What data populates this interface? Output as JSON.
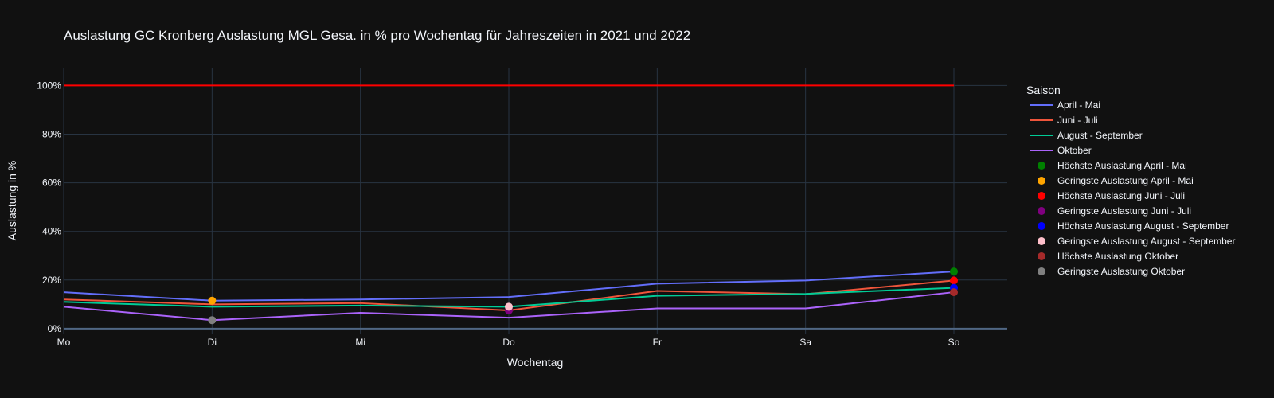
{
  "chart_data": {
    "type": "line",
    "title": "Auslastung GC Kronberg Auslastung MGL Gesa. in % pro Wochentag für Jahreszeiten in 2021 und 2022",
    "xlabel": "Wochentag",
    "ylabel": "Auslastung in %",
    "categories": [
      "Mo",
      "Di",
      "Mi",
      "Do",
      "Fr",
      "Sa",
      "So"
    ],
    "yticks": [
      "0%",
      "20%",
      "40%",
      "60%",
      "80%",
      "100%"
    ],
    "ylim": [
      -2,
      107
    ],
    "grid": true,
    "legend_title": "Saison",
    "legend_position": "right",
    "reference_line": {
      "value": 100,
      "color": "#ff0000"
    },
    "series": [
      {
        "name": "April - Mai",
        "color": "#636efa",
        "values": [
          15,
          11.5,
          12,
          13,
          18.5,
          19.8,
          23.5
        ]
      },
      {
        "name": "Juni - Juli",
        "color": "#ef553b",
        "values": [
          12,
          10,
          10.5,
          7.5,
          15.5,
          14.2,
          19.8
        ]
      },
      {
        "name": "August - September",
        "color": "#00cc96",
        "values": [
          11,
          9,
          9.5,
          9,
          13.5,
          14.3,
          16.8
        ]
      },
      {
        "name": "Oktober",
        "color": "#ab63fa",
        "values": [
          9,
          3.5,
          6.5,
          4.5,
          8.3,
          8.3,
          15
        ]
      }
    ],
    "markers": [
      {
        "name": "Höchste Auslastung April - Mai",
        "color": "#008000",
        "x": "So",
        "y": 23.5
      },
      {
        "name": "Geringste Auslastung April - Mai",
        "color": "#ffa500",
        "x": "Di",
        "y": 11.5
      },
      {
        "name": "Höchste Auslastung Juni - Juli",
        "color": "#ff0000",
        "x": "So",
        "y": 19.8
      },
      {
        "name": "Geringste Auslastung Juni - Juli",
        "color": "#800080",
        "x": "Do",
        "y": 7.5
      },
      {
        "name": "Höchste Auslastung August - September",
        "color": "#0000ff",
        "x": "So",
        "y": 16.8
      },
      {
        "name": "Geringste Auslastung August - September",
        "color": "#ffc0cb",
        "x": "Do",
        "y": 9
      },
      {
        "name": "Höchste Auslastung Oktober",
        "color": "#a52a2a",
        "x": "So",
        "y": 15
      },
      {
        "name": "Geringste Auslastung Oktober",
        "color": "#808080",
        "x": "Di",
        "y": 3.5
      }
    ]
  }
}
